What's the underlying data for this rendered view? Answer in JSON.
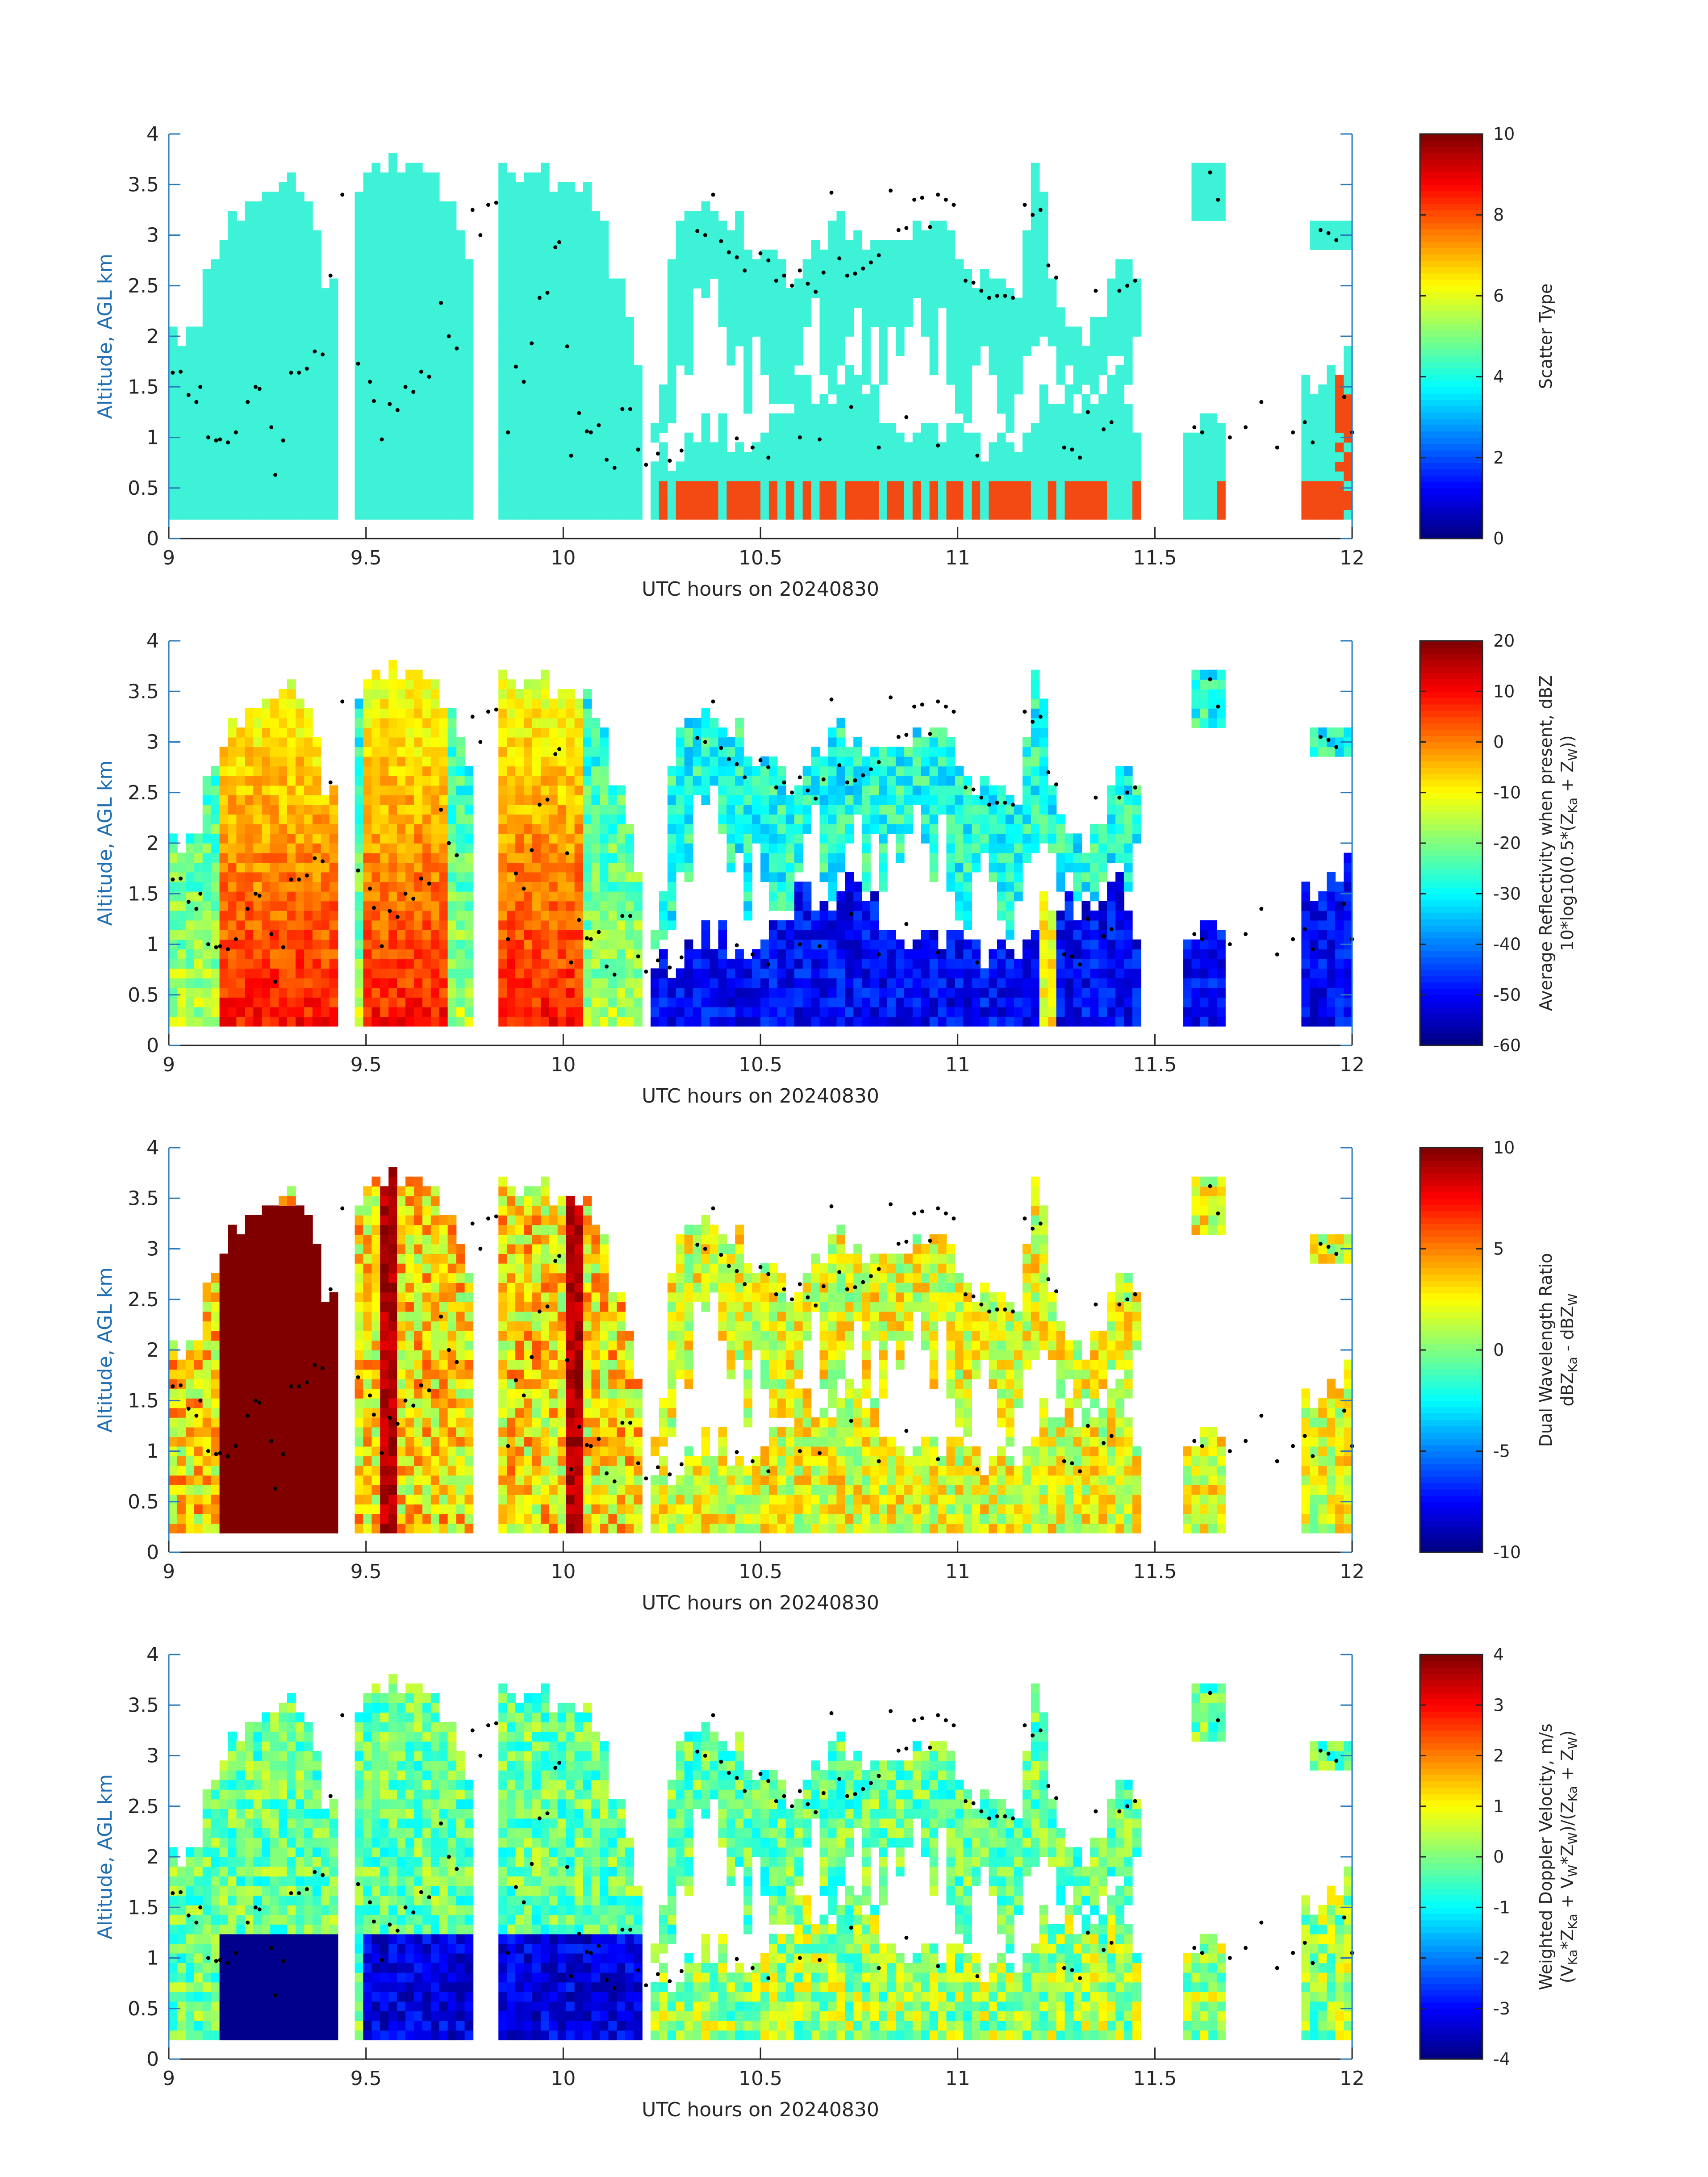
{
  "colors": {
    "cyan_class": "#3ef2d8",
    "orange_class": "#f24a12",
    "axis": "#2a7bbd",
    "text": "#262626",
    "dot": "#000000"
  },
  "chart_data": [
    {
      "type": "heatmap",
      "xlabel": "UTC hours on 20240830",
      "ylabel": "Altitude, AGL km",
      "xlim": [
        9,
        12
      ],
      "ylim": [
        0,
        4
      ],
      "xticks": [
        "9",
        "9.5",
        "10",
        "10.5",
        "11",
        "11.5",
        "12"
      ],
      "yticks": [
        "0",
        "0.5",
        "1",
        "1.5",
        "2",
        "2.5",
        "3",
        "3.5",
        "4"
      ],
      "colorbar": {
        "label": [
          "Scatter Type"
        ],
        "ticks": [
          "0",
          "2",
          "4",
          "6",
          "8",
          "10"
        ],
        "range": [
          0,
          10
        ],
        "colormap": "jet"
      },
      "field": "scatter"
    },
    {
      "type": "heatmap",
      "xlabel": "UTC hours on 20240830",
      "ylabel": "Altitude, AGL km",
      "xlim": [
        9,
        12
      ],
      "ylim": [
        0,
        4
      ],
      "xticks": [
        "9",
        "9.5",
        "10",
        "10.5",
        "11",
        "11.5",
        "12"
      ],
      "yticks": [
        "0",
        "0.5",
        "1",
        "1.5",
        "2",
        "2.5",
        "3",
        "3.5",
        "4"
      ],
      "colorbar": {
        "label": [
          "Average Reflectivity when present, dBZ",
          "10*log10(0.5*(Z",
          "Ka",
          " + Z",
          "W",
          "))"
        ],
        "ticks": [
          "-60",
          "-50",
          "-40",
          "-30",
          "-20",
          "-10",
          "0",
          "10",
          "20"
        ],
        "range": [
          -60,
          20
        ],
        "colormap": "jet"
      },
      "field": "dbz"
    },
    {
      "type": "heatmap",
      "xlabel": "UTC hours on 20240830",
      "ylabel": "Altitude, AGL km",
      "xlim": [
        9,
        12
      ],
      "ylim": [
        0,
        4
      ],
      "xticks": [
        "9",
        "9.5",
        "10",
        "10.5",
        "11",
        "11.5",
        "12"
      ],
      "yticks": [
        "0",
        "0.5",
        "1",
        "1.5",
        "2",
        "2.5",
        "3",
        "3.5",
        "4"
      ],
      "colorbar": {
        "label": [
          "Dual Wavelength Ratio",
          "dBZ",
          "Ka",
          " - dBZ",
          "W"
        ],
        "ticks": [
          "-10",
          "-5",
          "0",
          "5",
          "10"
        ],
        "range": [
          -10,
          10
        ],
        "colormap": "jet"
      },
      "field": "dwr"
    },
    {
      "type": "heatmap",
      "xlabel": "UTC hours on 20240830",
      "ylabel": "Altitude, AGL km",
      "xlim": [
        9,
        12
      ],
      "ylim": [
        0,
        4
      ],
      "xticks": [
        "9",
        "9.5",
        "10",
        "10.5",
        "11",
        "11.5",
        "12"
      ],
      "yticks": [
        "0",
        "0.5",
        "1",
        "1.5",
        "2",
        "2.5",
        "3",
        "3.5",
        "4"
      ],
      "colorbar": {
        "label": [
          "Weighted Doppler Velocity, m/s",
          "(V",
          "Ka",
          "*Z",
          "Ka",
          " + V",
          "W",
          "*Z",
          "W",
          ")/(Z",
          "Ka",
          " + Z",
          "W",
          ")"
        ],
        "ticks": [
          "-4",
          "-3",
          "-2",
          "-1",
          "0",
          "1",
          "2",
          "3",
          "4"
        ],
        "range": [
          -4,
          4
        ],
        "colormap": "jet"
      },
      "field": "vel"
    }
  ],
  "cloud_tops": [
    [
      9.0,
      2.0
    ],
    [
      9.05,
      2.0
    ],
    [
      9.08,
      2.3
    ],
    [
      9.12,
      2.8
    ],
    [
      9.14,
      3.1
    ],
    [
      9.2,
      3.35
    ],
    [
      9.25,
      3.45
    ],
    [
      9.3,
      3.5
    ],
    [
      9.34,
      3.45
    ],
    [
      9.37,
      3.2
    ],
    [
      9.39,
      2.6
    ],
    [
      9.41,
      2.2
    ],
    [
      9.43,
      3.4
    ],
    [
      9.47,
      3.5
    ],
    [
      9.5,
      3.5
    ],
    [
      9.53,
      3.6
    ],
    [
      9.58,
      3.6
    ],
    [
      9.65,
      3.6
    ],
    [
      9.7,
      3.45
    ],
    [
      9.73,
      3.3
    ],
    [
      9.75,
      3.0
    ],
    [
      9.77,
      2.7
    ],
    [
      9.79,
      3.2
    ],
    [
      9.81,
      3.5
    ],
    [
      9.84,
      3.8
    ],
    [
      9.9,
      3.6
    ],
    [
      9.96,
      3.55
    ],
    [
      10.0,
      3.55
    ],
    [
      10.04,
      3.6
    ],
    [
      10.08,
      3.3
    ],
    [
      10.12,
      2.8
    ],
    [
      10.16,
      2.2
    ],
    [
      10.19,
      1.6
    ],
    [
      10.21,
      1.3
    ],
    [
      10.25,
      1.3
    ],
    [
      10.28,
      3.0
    ],
    [
      10.32,
      3.15
    ],
    [
      10.37,
      3.35
    ],
    [
      10.42,
      3.2
    ],
    [
      10.47,
      2.9
    ],
    [
      10.52,
      2.8
    ],
    [
      10.57,
      2.6
    ],
    [
      10.62,
      2.9
    ],
    [
      10.67,
      3.0
    ],
    [
      10.72,
      3.1
    ],
    [
      10.77,
      2.9
    ],
    [
      10.82,
      3.0
    ],
    [
      10.87,
      3.15
    ],
    [
      10.92,
      3.2
    ],
    [
      10.97,
      3.1
    ],
    [
      11.02,
      2.7
    ],
    [
      11.07,
      2.55
    ],
    [
      11.12,
      2.45
    ],
    [
      11.16,
      2.45
    ],
    [
      11.19,
      3.6
    ],
    [
      11.22,
      3.3
    ],
    [
      11.25,
      2.4
    ],
    [
      11.3,
      2.0
    ],
    [
      11.35,
      2.1
    ],
    [
      11.4,
      2.7
    ],
    [
      11.46,
      2.65
    ],
    [
      11.5,
      0.0
    ],
    [
      11.63,
      3.7
    ],
    [
      11.66,
      3.4
    ],
    [
      11.68,
      0.0
    ],
    [
      11.92,
      3.2
    ],
    [
      11.97,
      3.1
    ],
    [
      12.0,
      2.9
    ]
  ],
  "precip_tops": [
    [
      10.25,
      0.8
    ],
    [
      10.3,
      0.95
    ],
    [
      10.36,
      1.2
    ],
    [
      10.42,
      1.0
    ],
    [
      10.5,
      1.05
    ],
    [
      10.55,
      1.2
    ],
    [
      10.6,
      1.5
    ],
    [
      10.65,
      1.4
    ],
    [
      10.7,
      1.5
    ],
    [
      10.75,
      1.6
    ],
    [
      10.8,
      1.35
    ],
    [
      10.85,
      1.1
    ],
    [
      10.9,
      1.0
    ],
    [
      10.95,
      0.95
    ],
    [
      11.0,
      1.0
    ],
    [
      11.05,
      0.95
    ],
    [
      11.1,
      0.9
    ],
    [
      11.15,
      0.9
    ],
    [
      11.25,
      1.5
    ],
    [
      11.3,
      1.3
    ],
    [
      11.35,
      1.5
    ],
    [
      11.4,
      1.7
    ],
    [
      11.45,
      1.3
    ],
    [
      11.5,
      0.5
    ],
    [
      11.56,
      1.3
    ],
    [
      11.62,
      1.1
    ],
    [
      11.68,
      1.0
    ],
    [
      11.74,
      1.2
    ],
    [
      11.8,
      1.5
    ],
    [
      11.86,
      1.3
    ],
    [
      11.92,
      1.6
    ],
    [
      11.97,
      1.7
    ]
  ],
  "gaps": [
    [
      9.42,
      9.47
    ],
    [
      9.765,
      9.83
    ],
    [
      10.205,
      10.23
    ],
    [
      11.47,
      11.57
    ],
    [
      11.68,
      11.88
    ]
  ],
  "dots": [
    [
      9.01,
      1.64
    ],
    [
      9.03,
      1.65
    ],
    [
      9.05,
      1.42
    ],
    [
      9.07,
      1.35
    ],
    [
      9.08,
      1.5
    ],
    [
      9.1,
      1.0
    ],
    [
      9.12,
      0.97
    ],
    [
      9.13,
      0.98
    ],
    [
      9.15,
      0.95
    ],
    [
      9.17,
      1.05
    ],
    [
      9.2,
      1.35
    ],
    [
      9.22,
      1.5
    ],
    [
      9.23,
      1.48
    ],
    [
      9.26,
      1.1
    ],
    [
      9.27,
      0.63
    ],
    [
      9.29,
      0.97
    ],
    [
      9.31,
      1.64
    ],
    [
      9.33,
      1.64
    ],
    [
      9.35,
      1.68
    ],
    [
      9.37,
      1.85
    ],
    [
      9.39,
      1.82
    ],
    [
      9.41,
      2.6
    ],
    [
      9.44,
      3.4
    ],
    [
      9.48,
      1.73
    ],
    [
      9.51,
      1.55
    ],
    [
      9.52,
      1.36
    ],
    [
      9.54,
      0.98
    ],
    [
      9.56,
      1.33
    ],
    [
      9.58,
      1.27
    ],
    [
      9.6,
      1.5
    ],
    [
      9.62,
      1.45
    ],
    [
      9.64,
      1.65
    ],
    [
      9.66,
      1.6
    ],
    [
      9.69,
      2.33
    ],
    [
      9.71,
      2.0
    ],
    [
      9.73,
      1.88
    ],
    [
      9.77,
      3.25
    ],
    [
      9.79,
      3.0
    ],
    [
      9.81,
      3.3
    ],
    [
      9.83,
      3.32
    ],
    [
      9.86,
      1.05
    ],
    [
      9.88,
      1.7
    ],
    [
      9.9,
      1.55
    ],
    [
      9.92,
      1.93
    ],
    [
      9.94,
      2.38
    ],
    [
      9.96,
      2.43
    ],
    [
      9.98,
      2.88
    ],
    [
      9.99,
      2.93
    ],
    [
      10.01,
      1.9
    ],
    [
      10.02,
      0.82
    ],
    [
      10.04,
      1.24
    ],
    [
      10.06,
      1.06
    ],
    [
      10.07,
      1.05
    ],
    [
      10.09,
      1.12
    ],
    [
      10.11,
      0.78
    ],
    [
      10.13,
      0.7
    ],
    [
      10.15,
      1.28
    ],
    [
      10.17,
      1.28
    ],
    [
      10.19,
      0.88
    ],
    [
      10.21,
      0.73
    ],
    [
      10.24,
      0.84
    ],
    [
      10.27,
      0.77
    ],
    [
      10.3,
      0.87
    ],
    [
      10.34,
      3.04
    ],
    [
      10.36,
      3.0
    ],
    [
      10.38,
      3.4
    ],
    [
      10.4,
      2.94
    ],
    [
      10.42,
      2.83
    ],
    [
      10.44,
      2.78
    ],
    [
      10.46,
      2.65
    ],
    [
      10.48,
      0.9
    ],
    [
      10.5,
      2.82
    ],
    [
      10.52,
      2.75
    ],
    [
      10.54,
      2.55
    ],
    [
      10.56,
      2.6
    ],
    [
      10.58,
      2.5
    ],
    [
      10.6,
      2.65
    ],
    [
      10.62,
      2.52
    ],
    [
      10.64,
      2.44
    ],
    [
      10.66,
      2.63
    ],
    [
      10.68,
      3.42
    ],
    [
      10.7,
      2.77
    ],
    [
      10.72,
      2.6
    ],
    [
      10.74,
      2.62
    ],
    [
      10.76,
      2.67
    ],
    [
      10.78,
      2.73
    ],
    [
      10.8,
      2.8
    ],
    [
      10.83,
      3.44
    ],
    [
      10.85,
      3.05
    ],
    [
      10.87,
      3.07
    ],
    [
      10.89,
      3.35
    ],
    [
      10.91,
      3.37
    ],
    [
      10.93,
      3.08
    ],
    [
      10.95,
      3.4
    ],
    [
      10.97,
      3.35
    ],
    [
      10.99,
      3.3
    ],
    [
      11.02,
      2.55
    ],
    [
      11.04,
      2.53
    ],
    [
      11.06,
      2.45
    ],
    [
      11.08,
      2.38
    ],
    [
      11.1,
      2.4
    ],
    [
      11.12,
      2.4
    ],
    [
      11.14,
      2.38
    ],
    [
      11.17,
      3.3
    ],
    [
      11.19,
      3.2
    ],
    [
      11.21,
      3.25
    ],
    [
      11.23,
      2.7
    ],
    [
      11.25,
      2.58
    ],
    [
      11.27,
      0.9
    ],
    [
      11.29,
      0.88
    ],
    [
      11.31,
      0.8
    ],
    [
      11.33,
      1.25
    ],
    [
      11.35,
      2.45
    ],
    [
      11.37,
      1.08
    ],
    [
      11.39,
      1.15
    ],
    [
      11.41,
      2.45
    ],
    [
      11.43,
      2.5
    ],
    [
      11.45,
      2.55
    ],
    [
      11.64,
      3.62
    ],
    [
      11.66,
      3.35
    ],
    [
      11.6,
      1.1
    ],
    [
      11.62,
      1.05
    ],
    [
      11.69,
      1.0
    ],
    [
      11.73,
      1.1
    ],
    [
      11.77,
      1.35
    ],
    [
      11.81,
      0.9
    ],
    [
      11.85,
      1.05
    ],
    [
      11.88,
      1.15
    ],
    [
      11.9,
      0.95
    ],
    [
      11.92,
      3.05
    ],
    [
      11.94,
      3.02
    ],
    [
      11.96,
      2.95
    ],
    [
      11.98,
      1.4
    ],
    [
      12.0,
      1.05
    ],
    [
      10.44,
      0.99
    ],
    [
      10.52,
      0.8
    ],
    [
      10.6,
      1.0
    ],
    [
      10.65,
      0.98
    ],
    [
      10.73,
      1.3
    ],
    [
      10.8,
      0.9
    ],
    [
      10.87,
      1.2
    ],
    [
      10.95,
      0.92
    ],
    [
      11.05,
      0.82
    ]
  ]
}
